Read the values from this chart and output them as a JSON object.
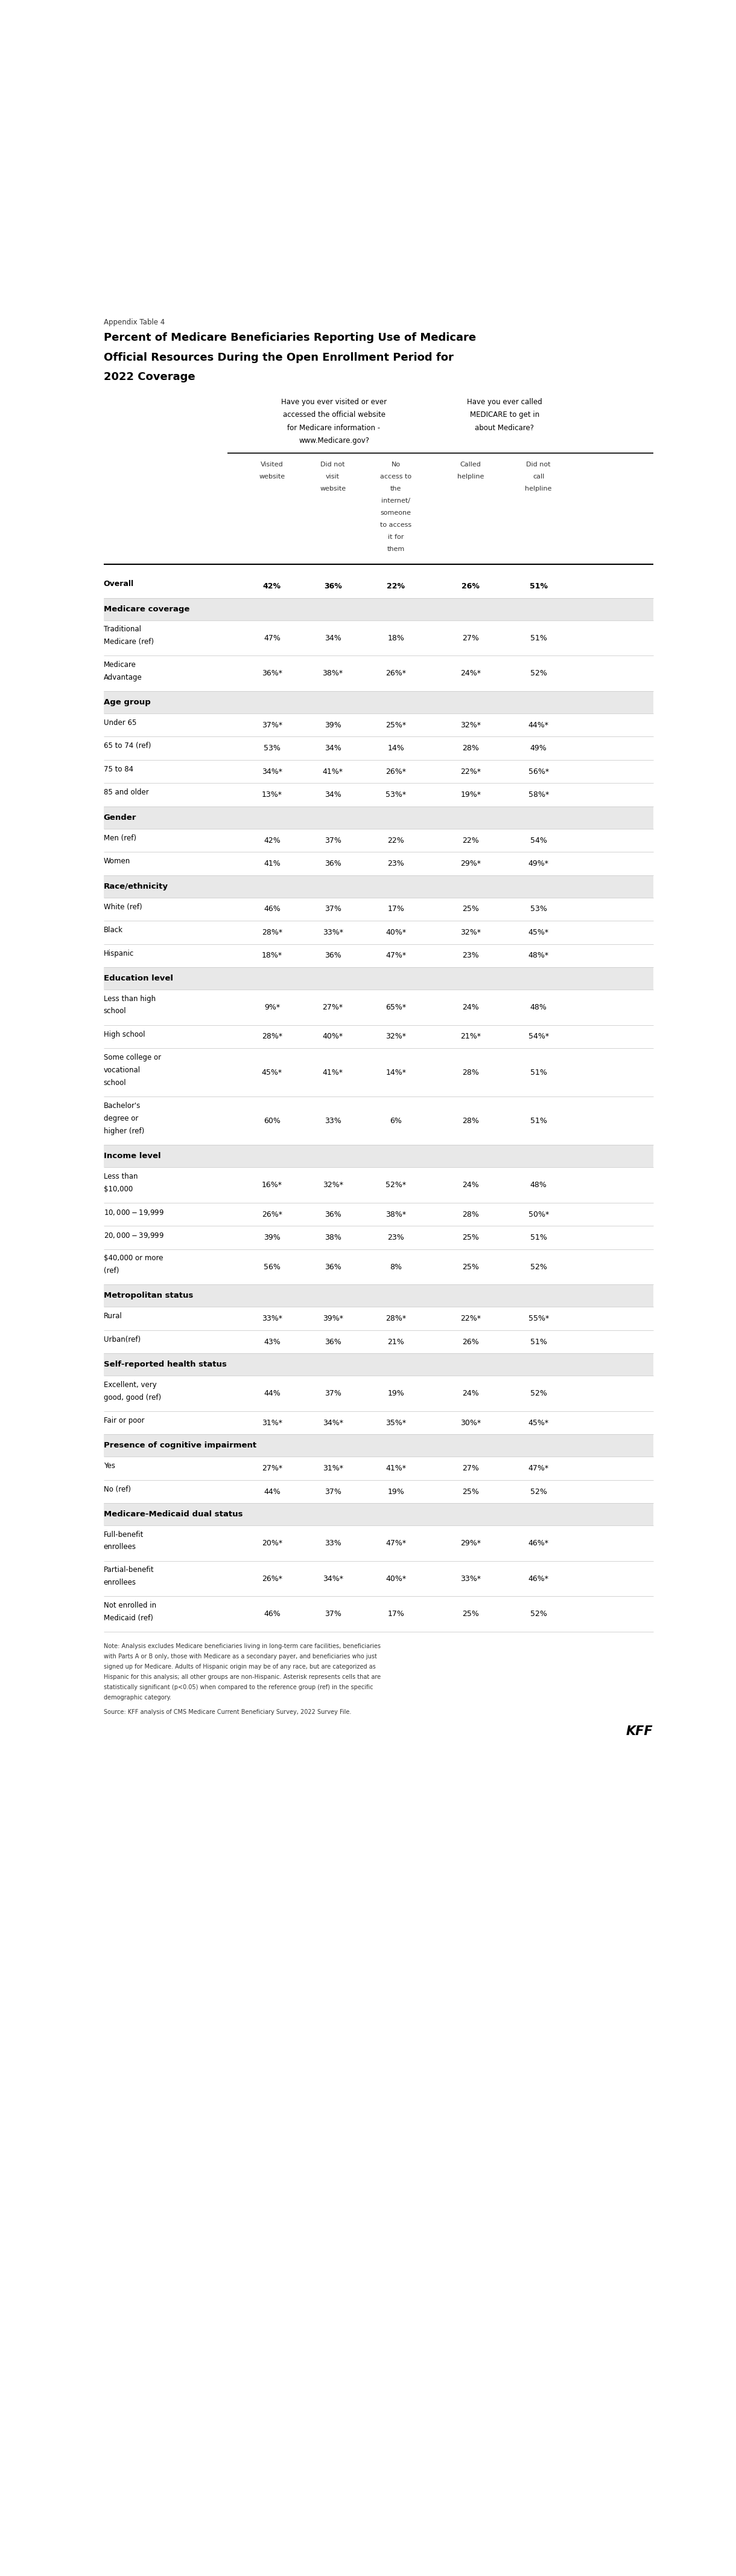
{
  "appendix_label": "Appendix Table 4",
  "title_line1": "Percent of Medicare Beneficiaries Reporting Use of Medicare",
  "title_line2": "Official Resources During the Open Enrollment Period for",
  "title_line3": "2022 Coverage",
  "col_group1_header": "Have you ever visited or ever\naccessed the official website\nfor Medicare information -\nwww.Medicare.gov?",
  "col_group2_header": "Have you ever called\nMEDICARE to get in\nabout Medicare?",
  "col_headers": [
    "Visited\nwebsite",
    "Did not\nvisit\nwebsite",
    "No\naccess to\nthe\ninternet/\nsomeone\nto access\nit for\nthem",
    "Called\nhelpline",
    "Did not\ncall\nhelpline"
  ],
  "rows": [
    {
      "label": "Overall",
      "values": [
        "42%",
        "36%",
        "22%",
        "26%",
        "51%"
      ],
      "bold": true,
      "section_header": false,
      "bg": "white"
    },
    {
      "label": "Medicare coverage",
      "values": [
        "",
        "",
        "",
        "",
        ""
      ],
      "bold": true,
      "section_header": true,
      "bg": "#e8e8e8"
    },
    {
      "label": "Traditional\nMedicare (ref)",
      "values": [
        "47%",
        "34%",
        "18%",
        "27%",
        "51%"
      ],
      "bold": false,
      "section_header": false,
      "bg": "white"
    },
    {
      "label": "Medicare\nAdvantage",
      "values": [
        "36%*",
        "38%*",
        "26%*",
        "24%*",
        "52%"
      ],
      "bold": false,
      "section_header": false,
      "bg": "white"
    },
    {
      "label": "Age group",
      "values": [
        "",
        "",
        "",
        "",
        ""
      ],
      "bold": true,
      "section_header": true,
      "bg": "#e8e8e8"
    },
    {
      "label": "Under 65",
      "values": [
        "37%*",
        "39%",
        "25%*",
        "32%*",
        "44%*"
      ],
      "bold": false,
      "section_header": false,
      "bg": "white"
    },
    {
      "label": "65 to 74 (ref)",
      "values": [
        "53%",
        "34%",
        "14%",
        "28%",
        "49%"
      ],
      "bold": false,
      "section_header": false,
      "bg": "white"
    },
    {
      "label": "75 to 84",
      "values": [
        "34%*",
        "41%*",
        "26%*",
        "22%*",
        "56%*"
      ],
      "bold": false,
      "section_header": false,
      "bg": "white"
    },
    {
      "label": "85 and older",
      "values": [
        "13%*",
        "34%",
        "53%*",
        "19%*",
        "58%*"
      ],
      "bold": false,
      "section_header": false,
      "bg": "white"
    },
    {
      "label": "Gender",
      "values": [
        "",
        "",
        "",
        "",
        ""
      ],
      "bold": true,
      "section_header": true,
      "bg": "#e8e8e8"
    },
    {
      "label": "Men (ref)",
      "values": [
        "42%",
        "37%",
        "22%",
        "22%",
        "54%"
      ],
      "bold": false,
      "section_header": false,
      "bg": "white"
    },
    {
      "label": "Women",
      "values": [
        "41%",
        "36%",
        "23%",
        "29%*",
        "49%*"
      ],
      "bold": false,
      "section_header": false,
      "bg": "white"
    },
    {
      "label": "Race/ethnicity",
      "values": [
        "",
        "",
        "",
        "",
        ""
      ],
      "bold": true,
      "section_header": true,
      "bg": "#e8e8e8"
    },
    {
      "label": "White (ref)",
      "values": [
        "46%",
        "37%",
        "17%",
        "25%",
        "53%"
      ],
      "bold": false,
      "section_header": false,
      "bg": "white"
    },
    {
      "label": "Black",
      "values": [
        "28%*",
        "33%*",
        "40%*",
        "32%*",
        "45%*"
      ],
      "bold": false,
      "section_header": false,
      "bg": "white"
    },
    {
      "label": "Hispanic",
      "values": [
        "18%*",
        "36%",
        "47%*",
        "23%",
        "48%*"
      ],
      "bold": false,
      "section_header": false,
      "bg": "white"
    },
    {
      "label": "Education level",
      "values": [
        "",
        "",
        "",
        "",
        ""
      ],
      "bold": true,
      "section_header": true,
      "bg": "#e8e8e8"
    },
    {
      "label": "Less than high\nschool",
      "values": [
        "9%*",
        "27%*",
        "65%*",
        "24%",
        "48%"
      ],
      "bold": false,
      "section_header": false,
      "bg": "white"
    },
    {
      "label": "High school",
      "values": [
        "28%*",
        "40%*",
        "32%*",
        "21%*",
        "54%*"
      ],
      "bold": false,
      "section_header": false,
      "bg": "white"
    },
    {
      "label": "Some college or\nvocational\nschool",
      "values": [
        "45%*",
        "41%*",
        "14%*",
        "28%",
        "51%"
      ],
      "bold": false,
      "section_header": false,
      "bg": "white"
    },
    {
      "label": "Bachelor's\ndegree or\nhigher (ref)",
      "values": [
        "60%",
        "33%",
        "6%",
        "28%",
        "51%"
      ],
      "bold": false,
      "section_header": false,
      "bg": "white"
    },
    {
      "label": "Income level",
      "values": [
        "",
        "",
        "",
        "",
        ""
      ],
      "bold": true,
      "section_header": true,
      "bg": "#e8e8e8"
    },
    {
      "label": "Less than\n$10,000",
      "values": [
        "16%*",
        "32%*",
        "52%*",
        "24%",
        "48%"
      ],
      "bold": false,
      "section_header": false,
      "bg": "white"
    },
    {
      "label": "$10,000-$19,999",
      "values": [
        "26%*",
        "36%",
        "38%*",
        "28%",
        "50%*"
      ],
      "bold": false,
      "section_header": false,
      "bg": "white"
    },
    {
      "label": "$20,000-$39,999",
      "values": [
        "39%",
        "38%",
        "23%",
        "25%",
        "51%"
      ],
      "bold": false,
      "section_header": false,
      "bg": "white"
    },
    {
      "label": "$40,000 or more\n(ref)",
      "values": [
        "56%",
        "36%",
        "8%",
        "25%",
        "52%"
      ],
      "bold": false,
      "section_header": false,
      "bg": "white"
    },
    {
      "label": "Metropolitan status",
      "values": [
        "",
        "",
        "",
        "",
        ""
      ],
      "bold": true,
      "section_header": true,
      "bg": "#e8e8e8"
    },
    {
      "label": "Rural",
      "values": [
        "33%*",
        "39%*",
        "28%*",
        "22%*",
        "55%*"
      ],
      "bold": false,
      "section_header": false,
      "bg": "white"
    },
    {
      "label": "Urban(ref)",
      "values": [
        "43%",
        "36%",
        "21%",
        "26%",
        "51%"
      ],
      "bold": false,
      "section_header": false,
      "bg": "white"
    },
    {
      "label": "Self-reported health status",
      "values": [
        "",
        "",
        "",
        "",
        ""
      ],
      "bold": true,
      "section_header": true,
      "bg": "#e8e8e8"
    },
    {
      "label": "Excellent, very\ngood, good (ref)",
      "values": [
        "44%",
        "37%",
        "19%",
        "24%",
        "52%"
      ],
      "bold": false,
      "section_header": false,
      "bg": "white"
    },
    {
      "label": "Fair or poor",
      "values": [
        "31%*",
        "34%*",
        "35%*",
        "30%*",
        "45%*"
      ],
      "bold": false,
      "section_header": false,
      "bg": "white"
    },
    {
      "label": "Presence of cognitive impairment",
      "values": [
        "",
        "",
        "",
        "",
        ""
      ],
      "bold": true,
      "section_header": true,
      "bg": "#e8e8e8"
    },
    {
      "label": "Yes",
      "values": [
        "27%*",
        "31%*",
        "41%*",
        "27%",
        "47%*"
      ],
      "bold": false,
      "section_header": false,
      "bg": "white"
    },
    {
      "label": "No (ref)",
      "values": [
        "44%",
        "37%",
        "19%",
        "25%",
        "52%"
      ],
      "bold": false,
      "section_header": false,
      "bg": "white"
    },
    {
      "label": "Medicare-Medicaid dual status",
      "values": [
        "",
        "",
        "",
        "",
        ""
      ],
      "bold": true,
      "section_header": true,
      "bg": "#e8e8e8"
    },
    {
      "label": "Full-benefit\nenrollees",
      "values": [
        "20%*",
        "33%",
        "47%*",
        "29%*",
        "46%*"
      ],
      "bold": false,
      "section_header": false,
      "bg": "white"
    },
    {
      "label": "Partial-benefit\nenrollees",
      "values": [
        "26%*",
        "34%*",
        "40%*",
        "33%*",
        "46%*"
      ],
      "bold": false,
      "section_header": false,
      "bg": "white"
    },
    {
      "label": "Not enrolled in\nMedicaid (ref)",
      "values": [
        "46%",
        "37%",
        "17%",
        "25%",
        "52%"
      ],
      "bold": false,
      "section_header": false,
      "bg": "white"
    }
  ],
  "note_lines": [
    "Note: Analysis excludes Medicare beneficiaries living in long-term care facilities, beneficiaries",
    "with Parts A or B only, those with Medicare as a secondary payer, and beneficiaries who just",
    "signed up for Medicare. Adults of Hispanic origin may be of any race, but are categorized as",
    "Hispanic for this analysis; all other groups are non-Hispanic. Asterisk represents cells that are",
    "statistically significant (p<0.05) when compared to the reference group (ref) in the specific",
    "demographic category."
  ],
  "source": "Source: KFF analysis of CMS Medicare Current Beneficiary Survey, 2022 Survey File.",
  "kff_logo": "KFF"
}
